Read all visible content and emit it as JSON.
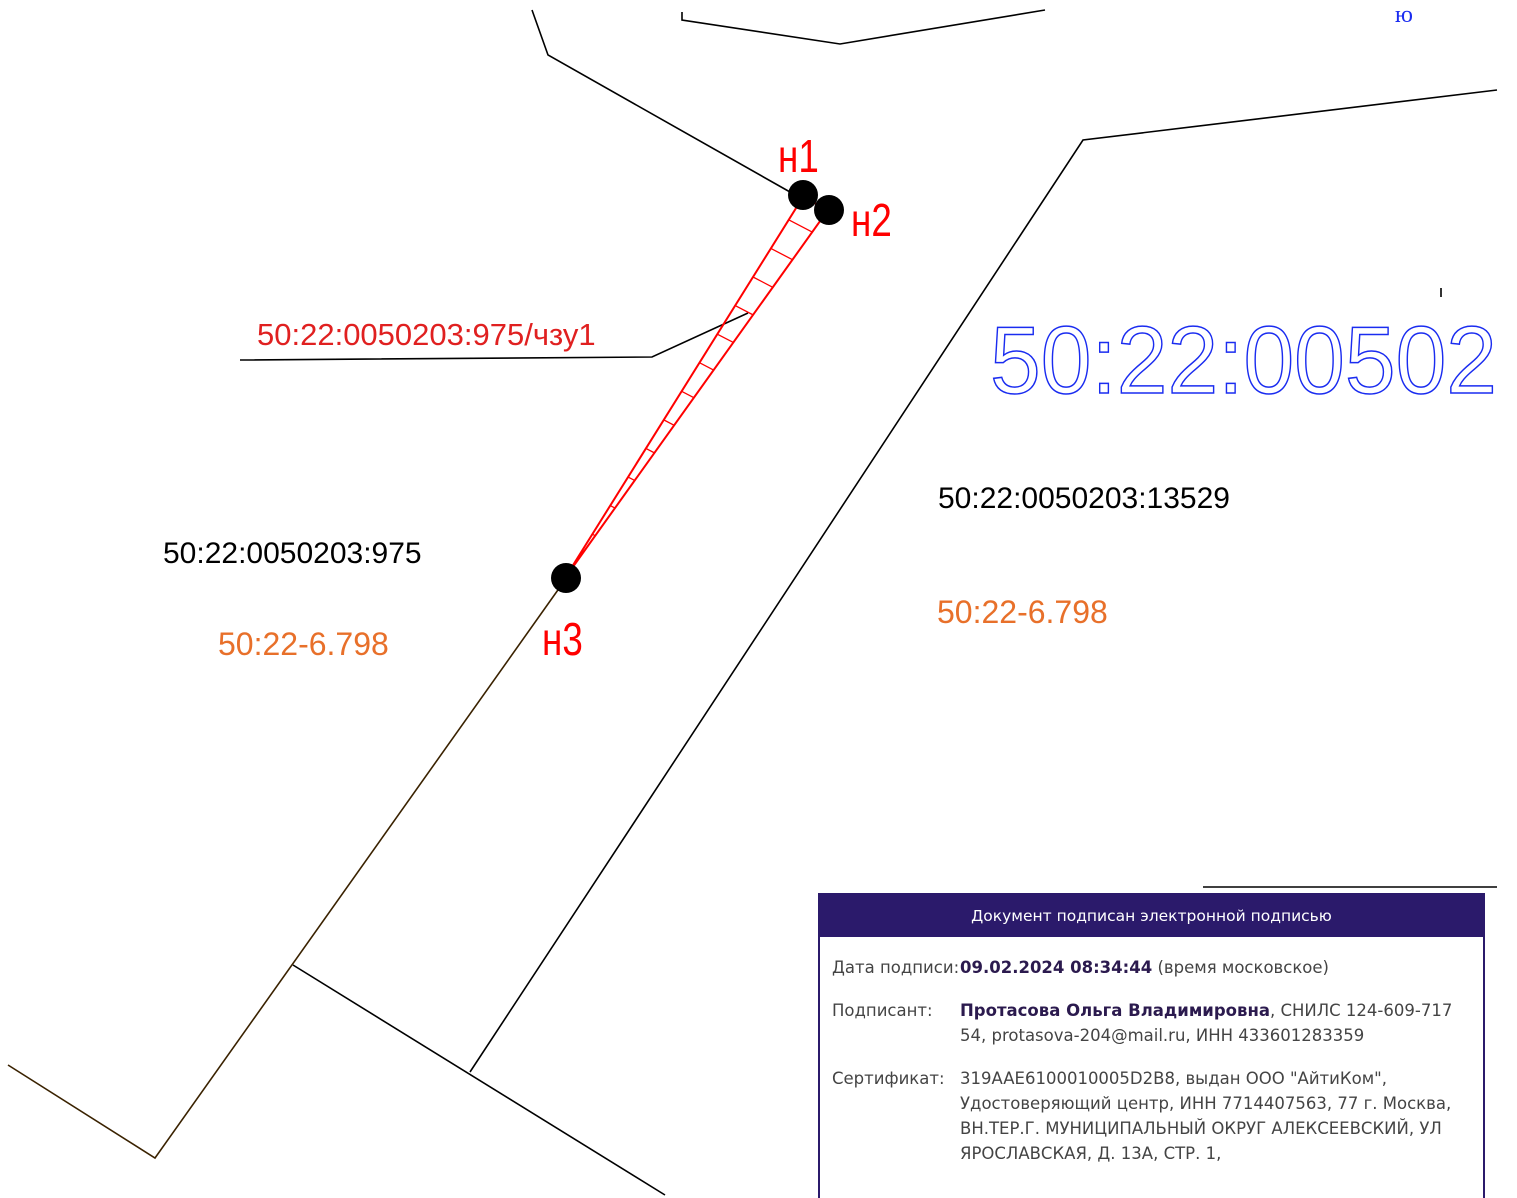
{
  "map": {
    "corner_label": "ю",
    "points": [
      {
        "label": "н1"
      },
      {
        "label": "н2"
      },
      {
        "label": "н3"
      }
    ],
    "part_label": "50:22:0050203:975/чзу1",
    "parcels": [
      {
        "number": "50:22:0050203:975",
        "zone": "50:22-6.798"
      },
      {
        "number": "50:22:0050203:13529",
        "zone": "50:22-6.798"
      }
    ],
    "quarter": "50:22:00502"
  },
  "signature": {
    "header": "Документ подписан электронной подписью",
    "rows": [
      {
        "label": "Дата подписи:",
        "bold": "09.02.2024 08:34:44",
        "text": " (время московское)"
      },
      {
        "label": "Подписант:",
        "bold": "Протасова Ольга Владимировна",
        "text": ", СНИЛС 124-609-717 54, protasova-204@mail.ru, ИНН 433601283359"
      },
      {
        "label": "Сертификат:",
        "bold": "",
        "text": "319AAE6100010005D2B8, выдан ООО \"АйтиКом\", Удостоверяющий центр, ИНН 7714407563, 77 г. Москва, ВН.ТЕР.Г. МУНИЦИПАЛЬНЫЙ ОКРУГ АЛЕКСЕЕВСКИЙ, УЛ ЯРОСЛАВСКАЯ, Д. 13А, СТР. 1,"
      }
    ]
  }
}
